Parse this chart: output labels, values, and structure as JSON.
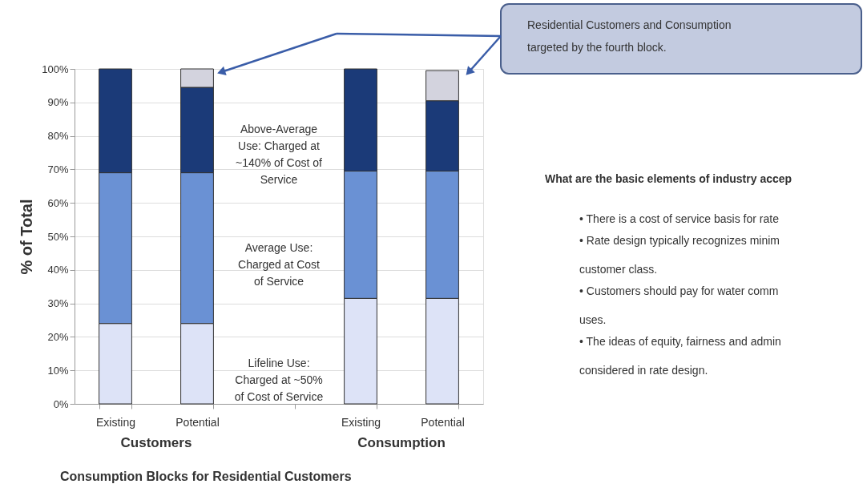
{
  "chart_data": {
    "type": "bar",
    "stacked": true,
    "ylabel": "% of Total",
    "xlabel": "Consumption Blocks for Residential Customers",
    "categories": [
      "Existing",
      "Potential",
      null,
      "Existing",
      "Potential"
    ],
    "series": [
      {
        "name": "Lifeline Use:\nCharged at ~50%\nof Cost of Service",
        "color": "#dde3f7",
        "values": [
          24,
          24,
          null,
          31.5,
          31.5
        ]
      },
      {
        "name": "Average Use:\nCharged at Cost\nof Service",
        "color": "#6a91d4",
        "values": [
          45,
          45,
          null,
          38,
          38
        ]
      },
      {
        "name": "Above-Average\nUse: Charged at\n~140% of Cost of\nService",
        "color": "#1b3a78",
        "values": [
          31,
          25.5,
          null,
          30.5,
          21
        ]
      },
      {
        "color": "#d3d3de",
        "values": [
          0,
          5.5,
          null,
          0,
          9
        ]
      }
    ],
    "ylim": [
      0,
      100
    ],
    "yticks": [
      {
        "value": 0,
        "label": "0%"
      },
      {
        "value": 10,
        "label": "10%"
      },
      {
        "value": 20,
        "label": "20%"
      },
      {
        "value": 30,
        "label": "30%"
      },
      {
        "value": 40,
        "label": "40%"
      },
      {
        "value": 50,
        "label": "50%"
      },
      {
        "value": 60,
        "label": "60%"
      },
      {
        "value": 70,
        "label": "70%"
      },
      {
        "value": 80,
        "label": "80%"
      },
      {
        "value": 90,
        "label": "90%"
      },
      {
        "value": 100,
        "label": "100%"
      }
    ],
    "grid": "y",
    "annotations": [
      "Customers",
      "Consumption",
      "Residential Customers and Consumption\ntargeted by the fourth block.",
      "What are the basic elements of industry accep",
      "•   There is a cost of service basis for rate",
      "•   Rate design typically recognizes minim\n     customer class.",
      "•   Customers should pay for water comm\n     uses.",
      "•   The ideas of equity, fairness and admin\n     considered in rate design."
    ]
  }
}
